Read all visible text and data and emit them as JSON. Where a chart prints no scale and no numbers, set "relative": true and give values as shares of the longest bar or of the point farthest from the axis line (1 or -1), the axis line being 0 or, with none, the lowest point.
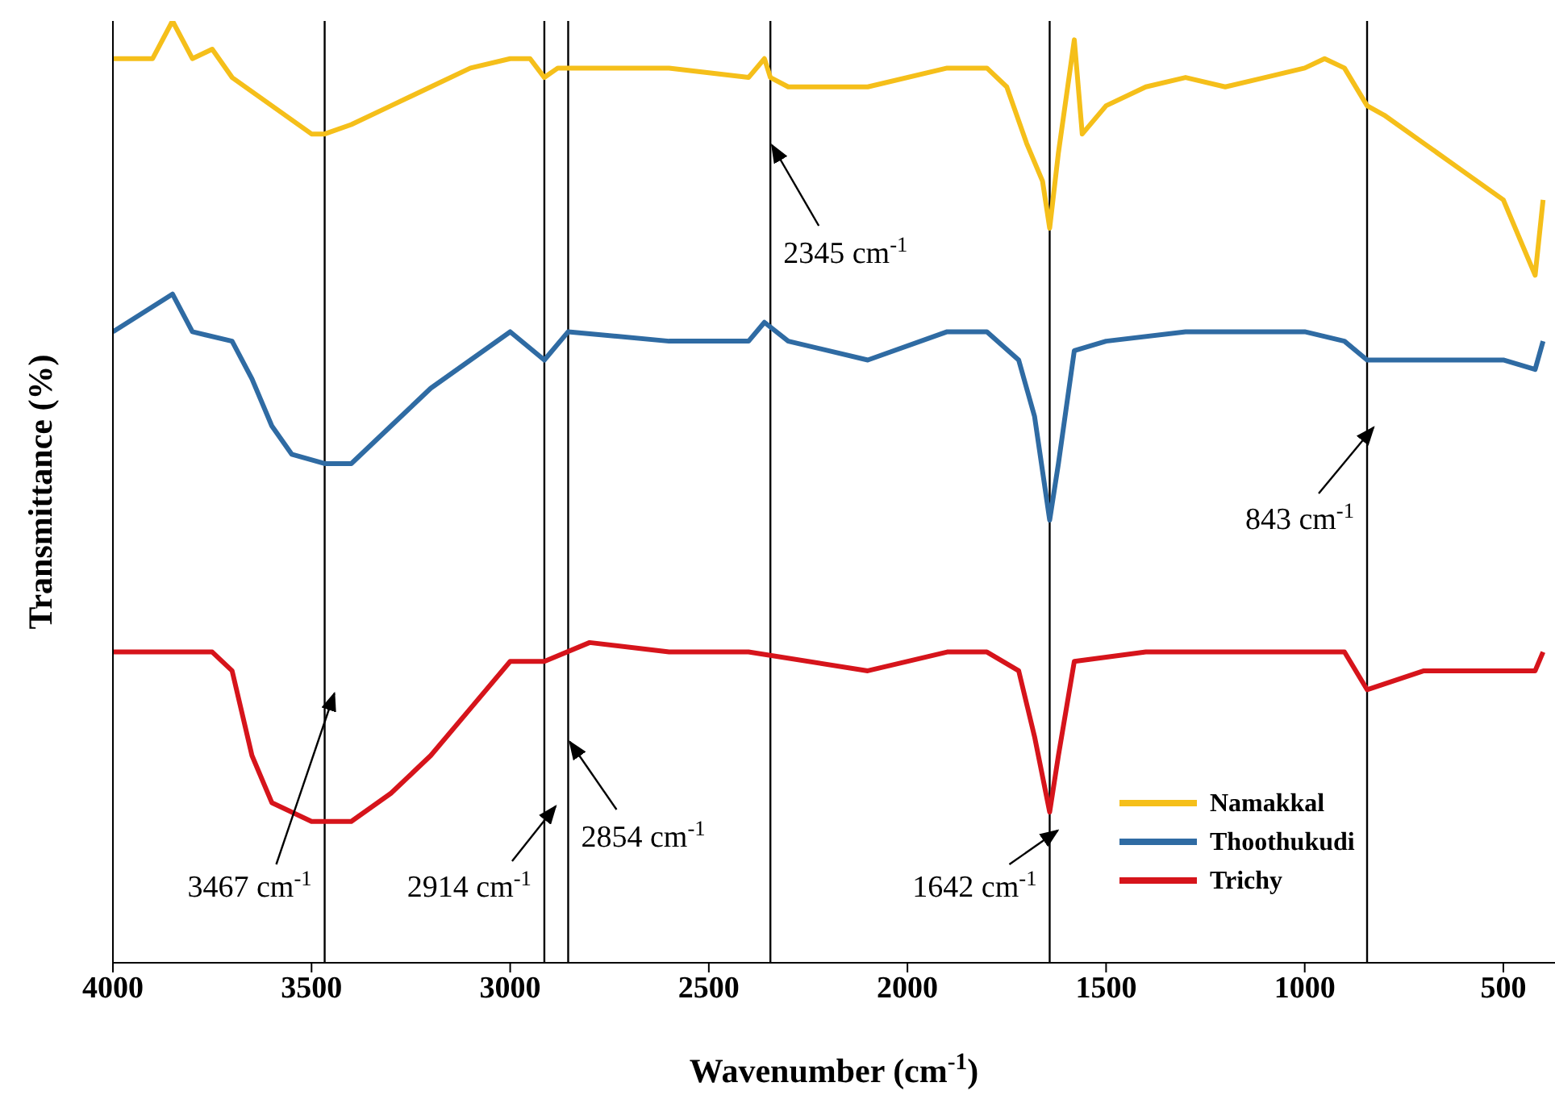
{
  "chart_data": {
    "type": "line",
    "relative": true,
    "xlabel": "Wavenumber (cm$^{-1}$)",
    "ylabel": "Transmittance (%)",
    "xlim": [
      4000,
      370
    ],
    "xticks": [
      4000,
      3500,
      3000,
      2500,
      2000,
      1500,
      1000,
      500
    ],
    "grid": false,
    "legend": "bottom right",
    "marker": "none",
    "line_style": "solid",
    "series": [
      {
        "name": "Namakkal",
        "color": "#f5bf1a",
        "x": [
          4000,
          3900,
          3850,
          3800,
          3750,
          3700,
          3600,
          3500,
          3467,
          3400,
          3300,
          3200,
          3100,
          3000,
          2950,
          2914,
          2880,
          2854,
          2800,
          2600,
          2400,
          2360,
          2345,
          2300,
          2100,
          1900,
          1800,
          1750,
          1700,
          1660,
          1642,
          1620,
          1580,
          1560,
          1500,
          1400,
          1300,
          1200,
          1100,
          1000,
          950,
          900,
          843,
          800,
          700,
          600,
          500,
          450,
          420,
          400
        ],
        "values": [
          0.96,
          0.96,
          1.0,
          0.96,
          0.97,
          0.94,
          0.91,
          0.88,
          0.88,
          0.89,
          0.91,
          0.93,
          0.95,
          0.96,
          0.96,
          0.94,
          0.95,
          0.95,
          0.95,
          0.95,
          0.94,
          0.96,
          0.94,
          0.93,
          0.93,
          0.95,
          0.95,
          0.93,
          0.87,
          0.83,
          0.78,
          0.86,
          0.98,
          0.88,
          0.91,
          0.93,
          0.94,
          0.93,
          0.94,
          0.95,
          0.96,
          0.95,
          0.91,
          0.9,
          0.87,
          0.84,
          0.81,
          0.76,
          0.73,
          0.81
        ]
      },
      {
        "name": "Thoothukudi",
        "color": "#2f6ba3",
        "x": [
          4000,
          3850,
          3800,
          3700,
          3650,
          3600,
          3550,
          3467,
          3400,
          3300,
          3200,
          3100,
          3000,
          2914,
          2854,
          2600,
          2400,
          2360,
          2300,
          2100,
          1900,
          1800,
          1720,
          1680,
          1642,
          1620,
          1580,
          1500,
          1300,
          1100,
          1000,
          900,
          843,
          700,
          600,
          500,
          420,
          400
        ],
        "values": [
          0.67,
          0.71,
          0.67,
          0.66,
          0.62,
          0.57,
          0.54,
          0.53,
          0.53,
          0.57,
          0.61,
          0.64,
          0.67,
          0.64,
          0.67,
          0.66,
          0.66,
          0.68,
          0.66,
          0.64,
          0.67,
          0.67,
          0.64,
          0.58,
          0.47,
          0.53,
          0.65,
          0.66,
          0.67,
          0.67,
          0.67,
          0.66,
          0.64,
          0.64,
          0.64,
          0.64,
          0.63,
          0.66
        ]
      },
      {
        "name": "Trichy",
        "color": "#d6141b",
        "x": [
          4000,
          3750,
          3700,
          3650,
          3600,
          3500,
          3467,
          3400,
          3300,
          3200,
          3100,
          3000,
          2914,
          2800,
          2600,
          2400,
          2100,
          1900,
          1800,
          1720,
          1680,
          1642,
          1620,
          1580,
          1400,
          1200,
          1000,
          900,
          843,
          700,
          500,
          420,
          400
        ],
        "values": [
          0.33,
          0.33,
          0.31,
          0.22,
          0.17,
          0.15,
          0.15,
          0.15,
          0.18,
          0.22,
          0.27,
          0.32,
          0.32,
          0.34,
          0.33,
          0.33,
          0.31,
          0.33,
          0.33,
          0.31,
          0.24,
          0.16,
          0.22,
          0.32,
          0.33,
          0.33,
          0.33,
          0.33,
          0.29,
          0.31,
          0.31,
          0.31,
          0.33
        ]
      }
    ],
    "ref_lines": [
      {
        "axis": "x",
        "value": 3467,
        "label": "3467 cm$^{-1}$",
        "color": "#000000"
      },
      {
        "axis": "x",
        "value": 2914,
        "label": "2914 cm$^{-1}$",
        "color": "#000000"
      },
      {
        "axis": "x",
        "value": 2854,
        "label": "2854 cm$^{-1}$",
        "color": "#000000"
      },
      {
        "axis": "x",
        "value": 2345,
        "label": "2345 cm$^{-1}$",
        "color": "#000000"
      },
      {
        "axis": "x",
        "value": 1642,
        "label": "1642 cm$^{-1}$",
        "color": "#000000"
      },
      {
        "axis": "x",
        "value": 843,
        "label": "843 cm$^{-1}$",
        "color": "#000000"
      }
    ]
  }
}
